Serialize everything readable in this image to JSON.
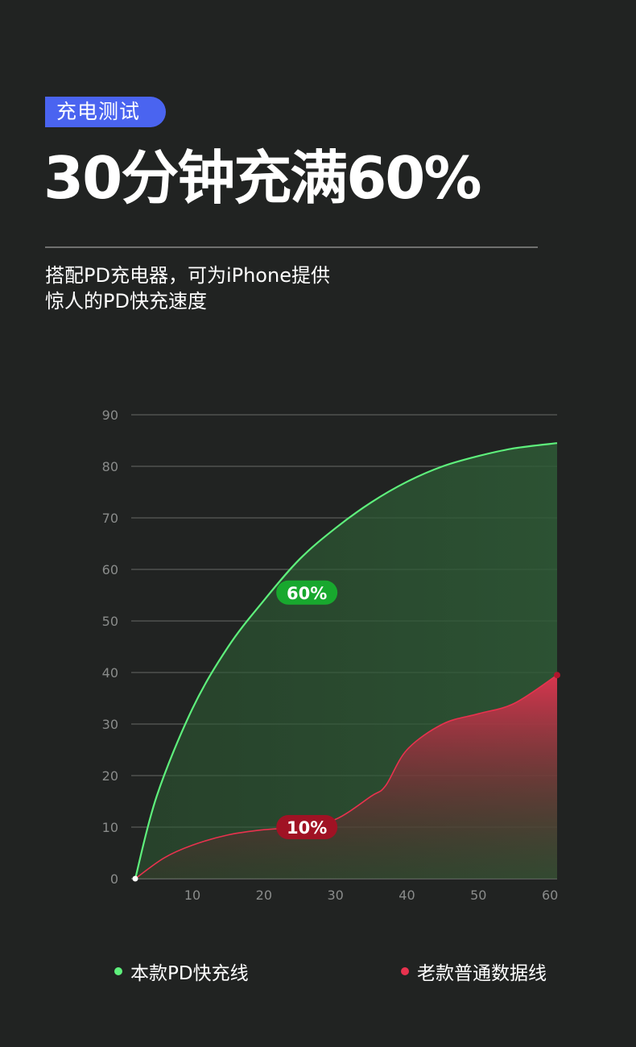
{
  "header": {
    "badge": "充电测试",
    "headline": "30分钟充满60%",
    "desc_line1": "搭配PD充电器，可为iPhone提供",
    "desc_line2": "惊人的PD快充速度"
  },
  "chart_data": {
    "type": "area",
    "title": "",
    "xlabel": "",
    "ylabel": "",
    "xlim": [
      2,
      61
    ],
    "ylim": [
      0,
      90
    ],
    "x_ticks": [
      10,
      20,
      30,
      40,
      50,
      60
    ],
    "y_ticks": [
      0,
      10,
      20,
      30,
      40,
      50,
      60,
      70,
      80,
      90
    ],
    "grid": true,
    "legend_position": "bottom",
    "series": [
      {
        "name": "本款PD快充线",
        "color": "#5ef07c",
        "label_color": "#18a82e",
        "x": [
          2,
          5,
          10,
          15,
          20,
          25,
          30,
          35,
          40,
          45,
          50,
          55,
          61
        ],
        "y": [
          0,
          16,
          33,
          45,
          54,
          62,
          68,
          73,
          77,
          80,
          82,
          83.5,
          84.5
        ],
        "annotation": {
          "x": 26,
          "y": 55.5,
          "text": "60%"
        }
      },
      {
        "name": "老款普通数据线",
        "color": "#e8324e",
        "label_color": "#a01224",
        "x": [
          2,
          6,
          10,
          15,
          20,
          25,
          30,
          35,
          37,
          40,
          45,
          50,
          55,
          61
        ],
        "y": [
          0,
          4,
          6.5,
          8.5,
          9.5,
          10,
          11.5,
          16,
          18,
          25,
          30,
          32,
          34,
          39.5
        ],
        "annotation": {
          "x": 26,
          "y": 10,
          "text": "10%"
        }
      }
    ]
  }
}
